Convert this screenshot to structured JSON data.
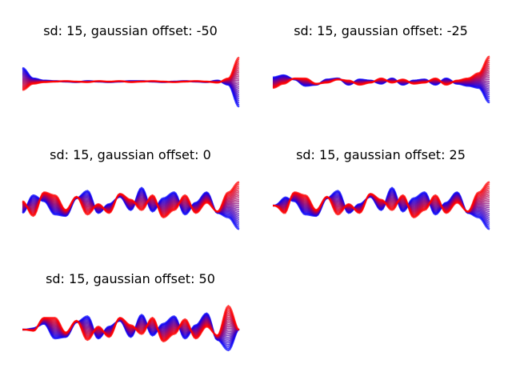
{
  "figure": {
    "background": "#ffffff",
    "color_start": "#0000ff",
    "color_end": "#ff0000"
  },
  "chart_data": [
    {
      "type": "line",
      "title": "sd: 15, gaussian offset: -50",
      "axes_visible": false,
      "n_curves": 25,
      "ylim": [
        -3.5,
        3.5
      ],
      "envelope": "left_and_right_edges",
      "x": [
        0,
        0.05,
        0.1,
        0.15,
        0.2,
        0.25,
        0.3,
        0.35,
        0.4,
        0.45,
        0.5,
        0.55,
        0.6,
        0.65,
        0.7,
        0.75,
        0.8,
        0.85,
        0.9,
        0.95,
        1
      ],
      "series": [
        {
          "label": "blue",
          "values": [
            1.3,
            0.3,
            0.1,
            0.05,
            0.0,
            -0.05,
            0.05,
            0.0,
            -0.05,
            0.0,
            0.05,
            0.05,
            0.0,
            -0.05,
            0.0,
            0.05,
            0.0,
            -0.05,
            0.1,
            -0.3,
            -2.4
          ]
        },
        {
          "label": "red",
          "values": [
            -0.8,
            -0.2,
            -0.05,
            0.0,
            0.05,
            0.0,
            -0.05,
            0.05,
            0.0,
            0.05,
            -0.05,
            0.0,
            0.05,
            0.0,
            -0.05,
            0.0,
            0.05,
            0.0,
            -0.1,
            0.3,
            2.3
          ]
        }
      ]
    },
    {
      "type": "line",
      "title": "sd: 15, gaussian offset: -25",
      "axes_visible": false,
      "n_curves": 25,
      "ylim": [
        -3.5,
        3.5
      ],
      "envelope": "right_edge",
      "x": [
        0,
        0.05,
        0.1,
        0.15,
        0.2,
        0.25,
        0.3,
        0.35,
        0.4,
        0.45,
        0.5,
        0.55,
        0.6,
        0.65,
        0.7,
        0.75,
        0.8,
        0.85,
        0.9,
        0.95,
        1
      ],
      "series": [
        {
          "label": "blue",
          "values": [
            0.4,
            0.6,
            0.2,
            -0.4,
            -0.3,
            0.2,
            0.3,
            -0.3,
            0.2,
            0.1,
            -0.2,
            0.3,
            -0.3,
            0.1,
            0.2,
            -0.3,
            0.3,
            -0.2,
            -0.4,
            -0.6,
            -2.0
          ]
        },
        {
          "label": "red",
          "values": [
            -0.6,
            -0.2,
            0.3,
            0.3,
            -0.2,
            -0.1,
            0.2,
            0.1,
            -0.3,
            -0.1,
            0.3,
            -0.1,
            0.2,
            -0.2,
            -0.1,
            0.3,
            -0.3,
            0.1,
            0.3,
            0.8,
            2.4
          ]
        }
      ]
    },
    {
      "type": "line",
      "title": "sd: 15, gaussian offset: 0",
      "axes_visible": false,
      "n_curves": 25,
      "ylim": [
        -2.5,
        2.5
      ],
      "envelope": "none",
      "x": [
        0,
        0.05,
        0.1,
        0.15,
        0.2,
        0.25,
        0.3,
        0.35,
        0.4,
        0.45,
        0.5,
        0.55,
        0.6,
        0.65,
        0.7,
        0.75,
        0.8,
        0.85,
        0.9,
        0.95,
        1
      ],
      "series": [
        {
          "label": "blue",
          "values": [
            -0.5,
            0.7,
            0.3,
            -0.6,
            -0.7,
            0.5,
            1.0,
            -0.5,
            0.1,
            0.6,
            -0.3,
            1.2,
            -0.4,
            0.5,
            0.9,
            -0.6,
            0.2,
            0.9,
            -0.5,
            -0.8,
            -1.6
          ]
        },
        {
          "label": "red",
          "values": [
            0.3,
            -0.7,
            0.9,
            0.7,
            -0.3,
            0.6,
            -0.6,
            0.1,
            -0.5,
            0.8,
            0.4,
            -0.3,
            0.7,
            -0.8,
            -0.3,
            0.7,
            -0.5,
            0.2,
            -0.4,
            0.9,
            1.6
          ]
        }
      ]
    },
    {
      "type": "line",
      "title": "sd: 15, gaussian offset: 25",
      "axes_visible": false,
      "n_curves": 25,
      "ylim": [
        -2.5,
        2.5
      ],
      "envelope": "left_edge",
      "x": [
        0,
        0.05,
        0.1,
        0.15,
        0.2,
        0.25,
        0.3,
        0.35,
        0.4,
        0.45,
        0.5,
        0.55,
        0.6,
        0.65,
        0.7,
        0.75,
        0.8,
        0.85,
        0.9,
        0.95,
        1
      ],
      "series": [
        {
          "label": "blue",
          "values": [
            0.0,
            0.6,
            0.3,
            -0.6,
            -0.7,
            0.5,
            1.0,
            -0.5,
            0.1,
            0.6,
            -0.3,
            1.2,
            -0.4,
            0.5,
            0.9,
            -0.6,
            0.2,
            0.9,
            -0.5,
            -0.8,
            -1.6
          ]
        },
        {
          "label": "red",
          "values": [
            0.0,
            -0.6,
            0.9,
            0.7,
            -0.3,
            0.6,
            -0.6,
            0.1,
            -0.5,
            0.8,
            0.4,
            -0.3,
            0.7,
            -0.8,
            -0.3,
            0.7,
            -0.5,
            0.2,
            -0.4,
            0.9,
            1.6
          ]
        }
      ]
    },
    {
      "type": "line",
      "title": "sd: 15, gaussian offset: 50",
      "axes_visible": false,
      "n_curves": 25,
      "ylim": [
        -2.5,
        2.5
      ],
      "envelope": "left_and_right_edges",
      "x": [
        0,
        0.05,
        0.1,
        0.15,
        0.2,
        0.25,
        0.3,
        0.35,
        0.4,
        0.45,
        0.5,
        0.55,
        0.6,
        0.65,
        0.7,
        0.75,
        0.8,
        0.85,
        0.9,
        0.95,
        1
      ],
      "series": [
        {
          "label": "blue",
          "values": [
            0.0,
            0.1,
            0.4,
            -0.6,
            -0.5,
            0.5,
            0.9,
            -0.6,
            0.2,
            0.6,
            -0.5,
            1.0,
            -0.4,
            0.4,
            0.9,
            -0.6,
            0.3,
            1.1,
            -0.7,
            -1.4,
            0.0
          ]
        },
        {
          "label": "red",
          "values": [
            0.0,
            -0.1,
            0.8,
            0.8,
            -0.2,
            0.6,
            -0.7,
            0.2,
            -0.5,
            0.8,
            0.3,
            -0.3,
            0.8,
            -0.8,
            -0.3,
            0.7,
            -0.6,
            0.2,
            -0.4,
            1.6,
            0.0
          ]
        }
      ]
    }
  ]
}
